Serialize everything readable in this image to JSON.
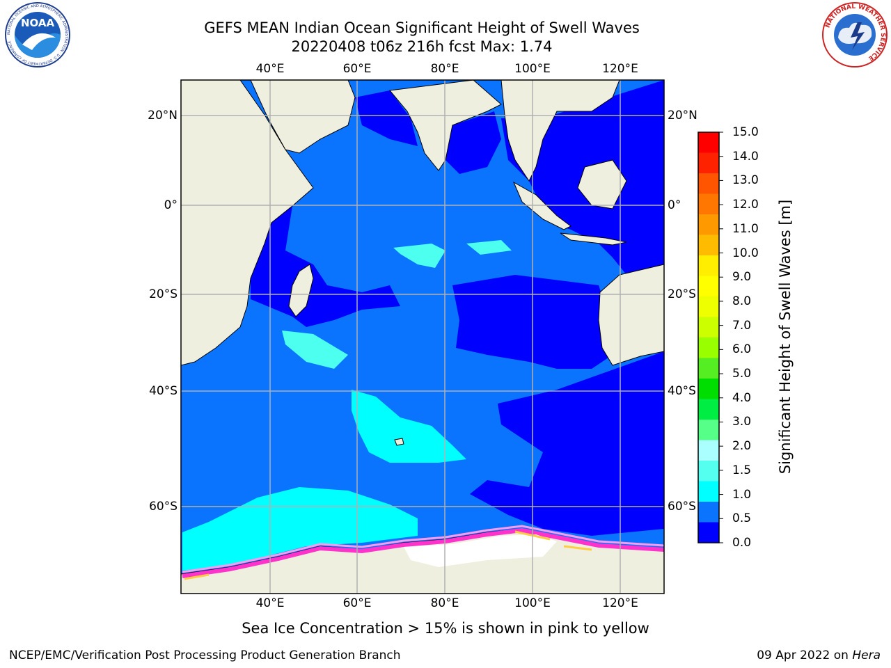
{
  "header": {
    "title_line1": "GEFS MEAN Indian Ocean Significant Height of Swell Waves",
    "title_line2": "20220408 t06z 216h fcst   Max: 1.74"
  },
  "map": {
    "lon_ticks": [
      "40°E",
      "60°E",
      "80°E",
      "100°E",
      "120°E"
    ],
    "lat_ticks": [
      "20°N",
      "0°",
      "20°S",
      "40°S",
      "60°S"
    ],
    "colors": {
      "land": "#efefdf",
      "ocean_0_0_5": "#0000ff",
      "ocean_0_5_1_0": "#0a74ff",
      "ocean_1_0_1_5": "#00ffff",
      "ocean_1_5_2_0": "#4dffef",
      "sea_ice_low": "#ff33cc",
      "sea_ice_mid": "#ff99ee",
      "sea_ice_high": "#ffcc44",
      "grid": "#b0b0b0"
    }
  },
  "colorbar": {
    "title": "Significant Height of Swell Waves [m]",
    "labels": [
      "15.0",
      "14.0",
      "13.0",
      "12.0",
      "11.0",
      "10.0",
      "9.0",
      "8.0",
      "7.0",
      "6.0",
      "5.0",
      "4.0",
      "3.0",
      "2.0",
      "1.5",
      "1.0",
      "0.5",
      "0.0"
    ],
    "colors": [
      "#ff0000",
      "#ff2200",
      "#ff5500",
      "#ff7700",
      "#ff9900",
      "#ffbb00",
      "#ffee00",
      "#ffff00",
      "#eeff00",
      "#ccff00",
      "#99ff00",
      "#55ee22",
      "#00dd00",
      "#00ee44",
      "#55ff88",
      "#aaffff",
      "#55fff0",
      "#00ffff",
      "#0a74ff",
      "#0000ff"
    ]
  },
  "footer": {
    "caption": "Sea Ice Concentration > 15% is shown in pink to yellow",
    "credit_left": "NCEP/EMC/Verification Post Processing Product Generation Branch",
    "date": "09 Apr 2022 on",
    "host": "Hera"
  },
  "logos": {
    "left": {
      "name": "noaa-logo",
      "text": "NOAA",
      "ring_text": "NATIONAL OCEANIC AND ATMOSPHERIC ADMINISTRATION · U.S. DEPARTMENT OF COMMERCE"
    },
    "right": {
      "name": "nws-logo",
      "ring_text": "NATIONAL WEATHER SERVICE"
    }
  }
}
